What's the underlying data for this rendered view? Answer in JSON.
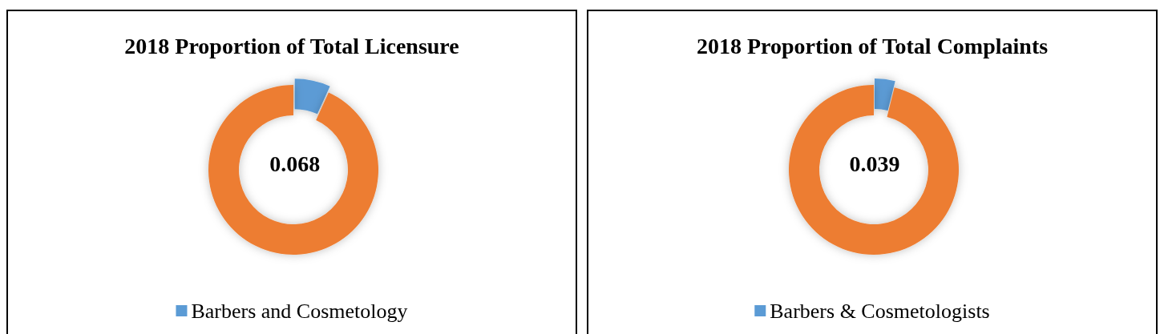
{
  "chart_data": [
    {
      "type": "donut",
      "title": "2018 Proportion of Total Licensure",
      "categories": [
        "Barbers and Cosmetology",
        null
      ],
      "values": [
        0.068,
        0.932
      ],
      "colors": [
        "#5b9bd5",
        "#ed7d31"
      ],
      "value_labels": [
        "0.068",
        null
      ],
      "legend": "bottom"
    },
    {
      "type": "donut",
      "title": "2018 Proportion of Total Complaints",
      "categories": [
        "Barbers & Cosmetologists",
        null
      ],
      "values": [
        0.039,
        0.961
      ],
      "colors": [
        "#5b9bd5",
        "#ed7d31"
      ],
      "value_labels": [
        "0.039",
        null
      ],
      "legend": "bottom"
    }
  ]
}
